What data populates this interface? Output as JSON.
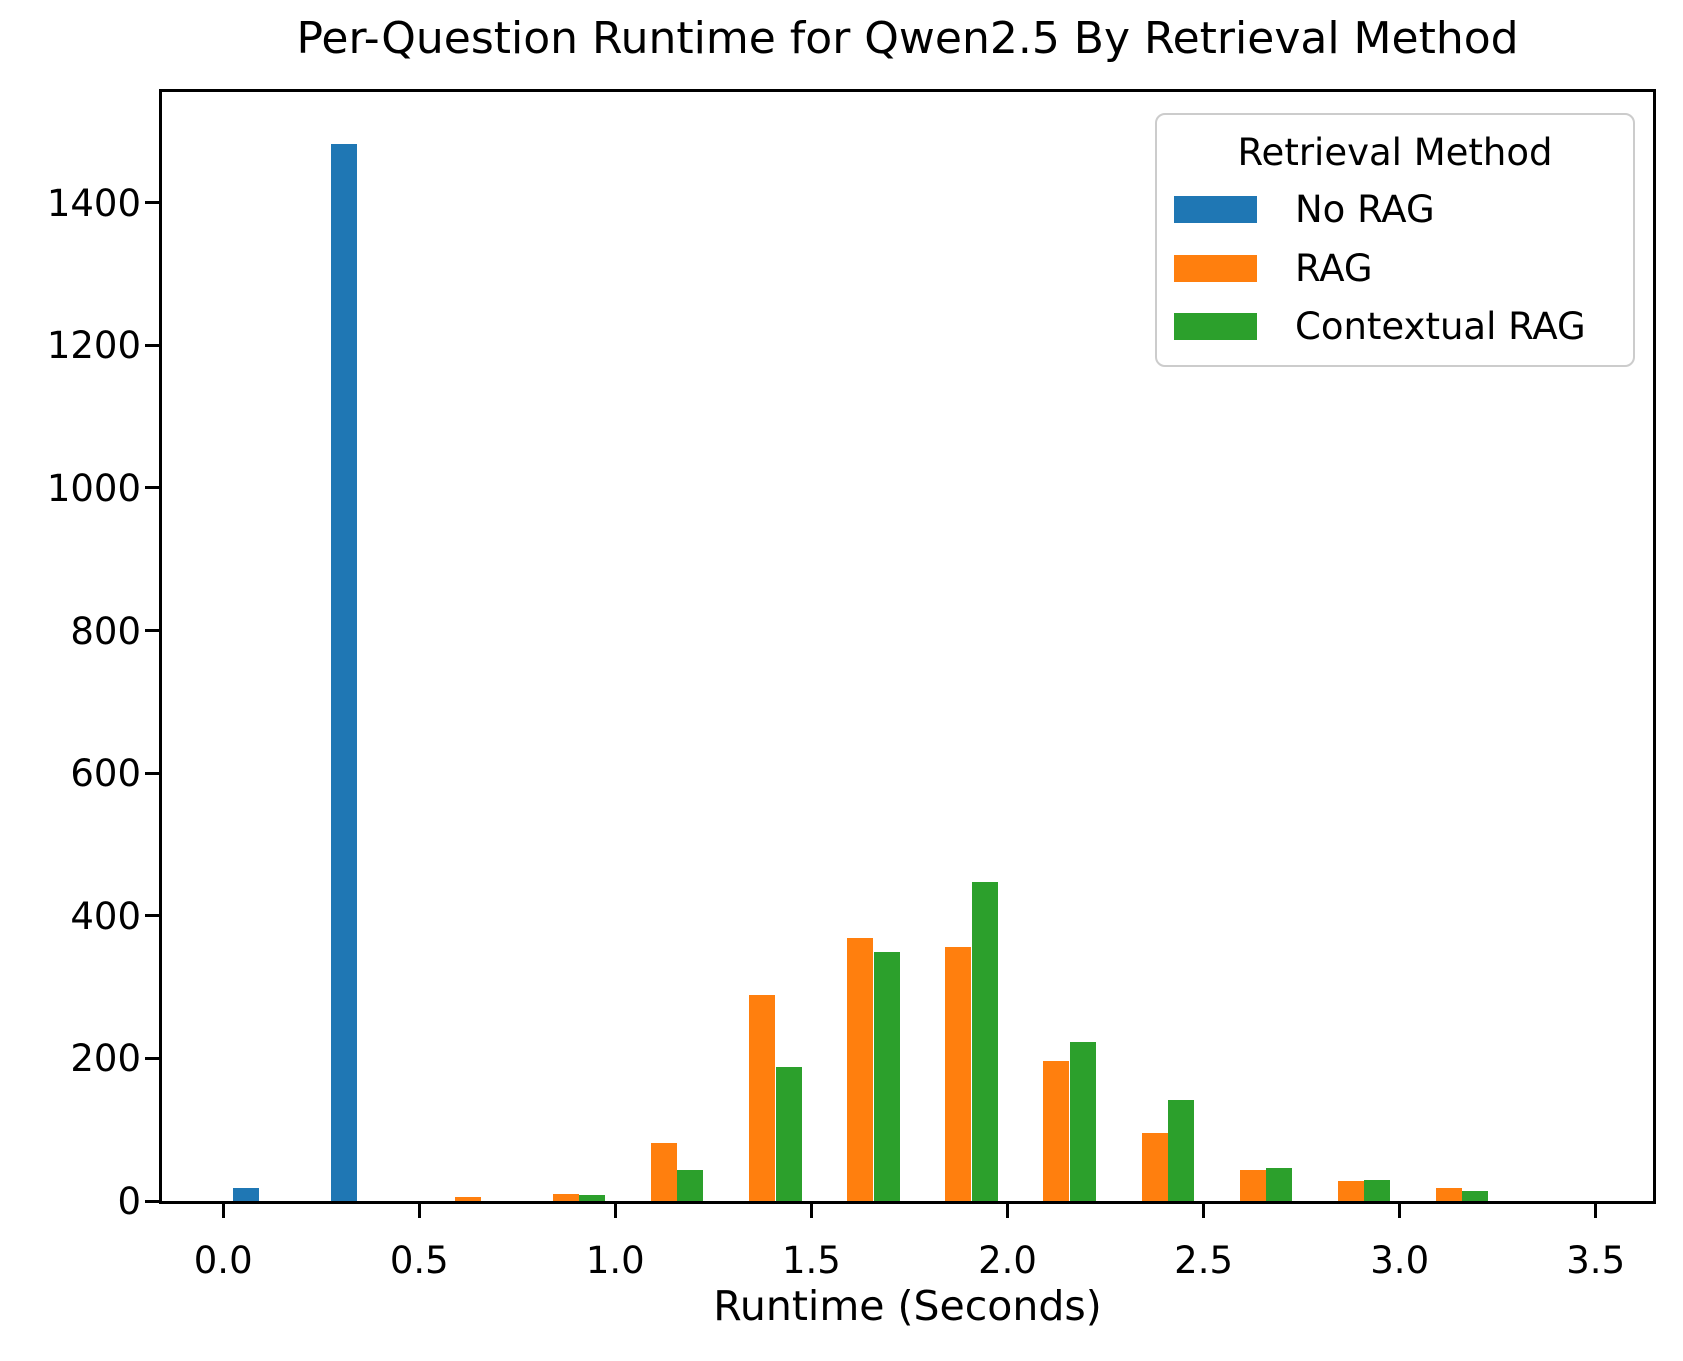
{
  "chart_data": {
    "type": "bar",
    "subtype": "grouped-histogram",
    "title": "Per-Question Runtime for Qwen2.5 By Retrieval Method",
    "xlabel": "Runtime (Seconds)",
    "ylabel": "",
    "grid": false,
    "bin_edges": [
      0.0,
      0.25,
      0.5,
      0.75,
      1.0,
      1.25,
      1.5,
      1.75,
      2.0,
      2.25,
      2.5,
      2.75,
      3.0,
      3.25,
      3.5
    ],
    "series": [
      {
        "name": "No RAG",
        "color": "#1f77b4",
        "values": [
          18,
          1482,
          0,
          0,
          0,
          0,
          0,
          0,
          0,
          0,
          0,
          0,
          0,
          0
        ]
      },
      {
        "name": "RAG",
        "color": "#ff7f0e",
        "values": [
          0,
          0,
          5,
          10,
          81,
          289,
          369,
          356,
          197,
          96,
          44,
          28,
          18,
          0
        ]
      },
      {
        "name": "Contextual RAG",
        "color": "#2ca02c",
        "values": [
          0,
          0,
          0,
          9,
          44,
          188,
          349,
          448,
          223,
          141,
          47,
          30,
          14,
          0
        ]
      }
    ],
    "legend": {
      "title": "Retrieval Method",
      "position": "upper right"
    },
    "x_ticks": {
      "values": [
        0.0,
        0.5,
        1.0,
        1.5,
        2.0,
        2.5,
        3.0,
        3.5
      ],
      "labels": [
        "0.0",
        "0.5",
        "1.0",
        "1.5",
        "2.0",
        "2.5",
        "3.0",
        "3.5"
      ]
    },
    "y_ticks": {
      "values": [
        0,
        200,
        400,
        600,
        800,
        1000,
        1200,
        1400
      ],
      "labels": [
        "0",
        "200",
        "400",
        "600",
        "800",
        "1000",
        "1200",
        "1400"
      ]
    },
    "xlim": [
      -0.156,
      3.646
    ],
    "ylim": [
      0,
      1555
    ],
    "group_rwidth": 0.8
  }
}
